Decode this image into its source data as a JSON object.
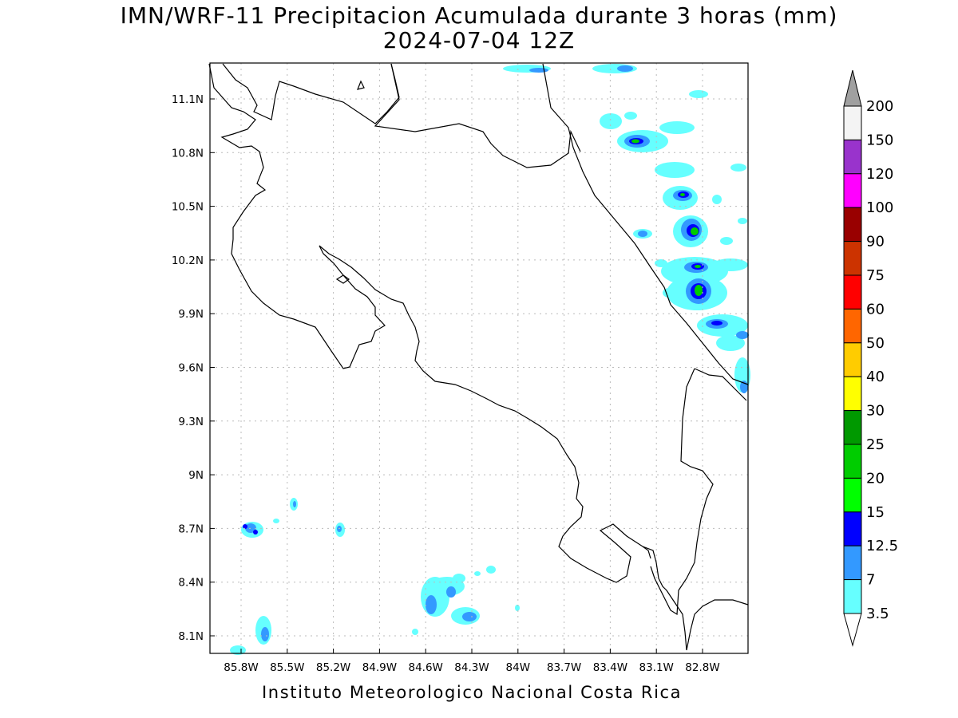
{
  "title": "IMN/WRF-11 Precipitacion Acumulada durante 3 horas (mm)",
  "subtitle": "2024-07-04 12Z",
  "footer": "Instituto Meteorologico Nacional Costa Rica",
  "map": {
    "lat_labels": [
      "11.1N",
      "10.8N",
      "10.5N",
      "10.2N",
      "9.9N",
      "9.6N",
      "9.3N",
      "9N",
      "8.7N",
      "8.4N",
      "8.1N"
    ],
    "lon_labels": [
      "85.8W",
      "85.5W",
      "85.2W",
      "84.9W",
      "84.6W",
      "84.3W",
      "84W",
      "83.7W",
      "83.4W",
      "83.1W",
      "82.8W"
    ],
    "grid": true,
    "line_color": "#000000",
    "grid_color": "#bbbbbb"
  },
  "legend": {
    "labels": [
      "200",
      "150",
      "120",
      "100",
      "90",
      "75",
      "60",
      "50",
      "40",
      "30",
      "25",
      "20",
      "15",
      "12.5",
      "7",
      "3.5"
    ],
    "colors": [
      "#f4f4f4",
      "#9933cc",
      "#ff00ff",
      "#990000",
      "#cc3300",
      "#ff0000",
      "#ff6600",
      "#ffcc00",
      "#ffff00",
      "#009900",
      "#00cc00",
      "#00ff00",
      "#0000ff",
      "#3399ff",
      "#66ffff"
    ],
    "top_cap_color": "#a0a0a0",
    "bottom_cap_color": "#ffffff"
  },
  "precip_colors": {
    "light": "#66ffff",
    "medium": "#3399ff",
    "heavy": "#0000ff",
    "green": "#00cc00"
  }
}
